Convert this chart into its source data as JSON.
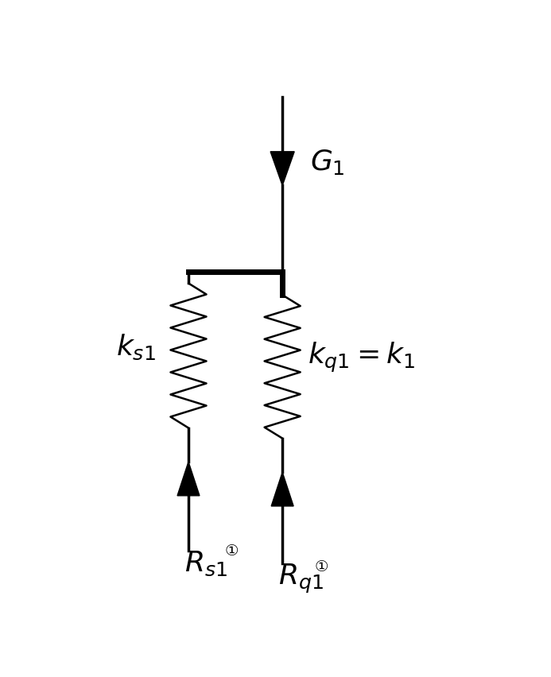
{
  "bg_color": "#ffffff",
  "line_color": "#000000",
  "figsize": [
    6.93,
    8.52
  ],
  "dpi": 100,
  "label_G1": "$G_1$",
  "label_ks1": "$k_{s1}$",
  "label_kq1": "$k_{q1}=k_1$"
}
